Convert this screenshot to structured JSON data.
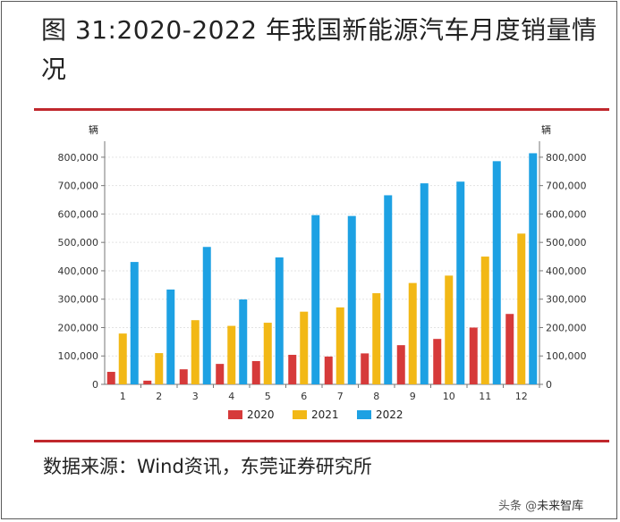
{
  "title": "图 31:2020-2022 年我国新能源汽车月度销量情况",
  "source": "数据来源：Wind资讯，东莞证券研究所",
  "watermark": {
    "prefix": "头条 @",
    "brand": "未来智库"
  },
  "chart_data": {
    "type": "bar",
    "y_unit_left": "辆",
    "y_unit_right": "辆",
    "categories": [
      "1",
      "2",
      "3",
      "4",
      "5",
      "6",
      "7",
      "8",
      "9",
      "10",
      "11",
      "12"
    ],
    "series": [
      {
        "name": "2020",
        "color": "#d63a3a",
        "values": [
          44000,
          13000,
          53000,
          72000,
          82000,
          104000,
          98000,
          109000,
          138000,
          160000,
          200000,
          248000
        ]
      },
      {
        "name": "2021",
        "color": "#f2b816",
        "values": [
          179000,
          110000,
          226000,
          206000,
          217000,
          256000,
          271000,
          321000,
          357000,
          383000,
          450000,
          531000
        ]
      },
      {
        "name": "2022",
        "color": "#1da1e3",
        "values": [
          431000,
          334000,
          484000,
          299000,
          447000,
          596000,
          593000,
          666000,
          708000,
          714000,
          786000,
          814000
        ]
      }
    ],
    "ylim": [
      0,
      850000
    ],
    "yticks": [
      0,
      100000,
      200000,
      300000,
      400000,
      500000,
      600000,
      700000,
      800000
    ],
    "ytick_labels": [
      "0",
      "100,000",
      "200,000",
      "300,000",
      "400,000",
      "500,000",
      "600,000",
      "700,000",
      "800,000"
    ],
    "grid": true,
    "legend_position": "bottom-center"
  }
}
